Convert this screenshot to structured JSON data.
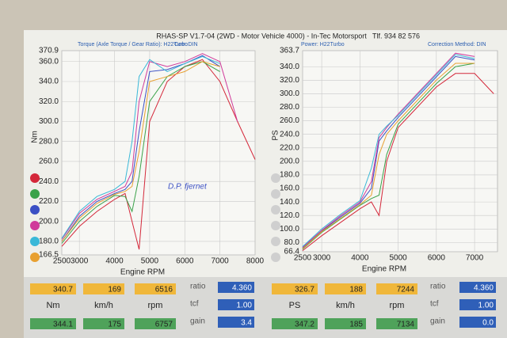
{
  "header": {
    "title": "RHAS-SP V1.7-04   (2WD - Motor Vehicle 4000) - In-Tec Motorsport",
    "phone": "Tlf.  934 82 576"
  },
  "chart_data": [
    {
      "type": "line",
      "subtitle": "Torque (Axle Torque / Gear Ratio): H22Turbo",
      "subtitle2": "Corr: DIN",
      "x_label": "Engine RPM",
      "y_label": "Nm",
      "annotation": "D.P. fjernet",
      "x": [
        2500,
        3000,
        3500,
        4000,
        4300,
        4500,
        4700,
        5000,
        5500,
        6000,
        6500,
        7000,
        7500,
        8000
      ],
      "series": [
        {
          "color": "#d4283a",
          "values": [
            175,
            195,
            210,
            222,
            228,
            200,
            172,
            300,
            340,
            355,
            362,
            340,
            300,
            262
          ]
        },
        {
          "color": "#3aa24a",
          "values": [
            178,
            200,
            215,
            226,
            225,
            210,
            245,
            320,
            345,
            355,
            360,
            350,
            null,
            null
          ]
        },
        {
          "color": "#3a4fc4",
          "values": [
            180,
            205,
            220,
            228,
            232,
            240,
            290,
            350,
            352,
            358,
            366,
            355,
            null,
            null
          ]
        },
        {
          "color": "#d03a9a",
          "values": [
            182,
            208,
            222,
            230,
            235,
            250,
            320,
            360,
            355,
            360,
            368,
            360,
            300,
            null
          ]
        },
        {
          "color": "#3ab8d8",
          "values": [
            183,
            210,
            225,
            232,
            240,
            280,
            345,
            362,
            350,
            358,
            365,
            358,
            null,
            null
          ]
        },
        {
          "color": "#e8a030",
          "values": [
            180,
            203,
            218,
            227,
            230,
            235,
            270,
            340,
            345,
            350,
            360,
            355,
            null,
            null
          ]
        }
      ],
      "xlim": [
        2500,
        8000
      ],
      "xticks": [
        2500,
        3000,
        4000,
        5000,
        6000,
        7000,
        8000
      ],
      "ylim": [
        166.5,
        370.9
      ],
      "yticks": [
        166.5,
        {
          "value": 180,
          "label": "180.0"
        },
        {
          "value": 200,
          "label": "200.0"
        },
        {
          "value": 220,
          "label": "220.0"
        },
        {
          "value": 240,
          "label": "240.0"
        },
        {
          "value": 260,
          "label": "260.0"
        },
        {
          "value": 280,
          "label": "280.0"
        },
        {
          "value": 300,
          "label": "300.0"
        },
        {
          "value": 320,
          "label": "320.0"
        },
        {
          "value": 340,
          "label": "340.0"
        },
        {
          "value": 360,
          "label": "360.0"
        },
        370.9
      ],
      "grid": true
    },
    {
      "type": "line",
      "subtitle": "Power: H22Turbo",
      "subtitle2": "Correction Method: DIN",
      "x_label": "Engine RPM",
      "y_label": "PS",
      "x": [
        2500,
        3000,
        3500,
        4000,
        4300,
        4500,
        4700,
        5000,
        5500,
        6000,
        6500,
        7000,
        7500
      ],
      "series": [
        {
          "color": "#d4283a",
          "values": [
            68,
            90,
            110,
            130,
            140,
            120,
            200,
            250,
            280,
            310,
            330,
            330,
            300
          ]
        },
        {
          "color": "#3aa24a",
          "values": [
            70,
            95,
            115,
            135,
            145,
            150,
            210,
            255,
            285,
            315,
            340,
            345,
            null
          ]
        },
        {
          "color": "#3a4fc4",
          "values": [
            72,
            97,
            118,
            138,
            160,
            230,
            245,
            265,
            295,
            325,
            355,
            350,
            null
          ]
        },
        {
          "color": "#d03a9a",
          "values": [
            73,
            98,
            120,
            140,
            170,
            235,
            250,
            270,
            300,
            330,
            360,
            355,
            null
          ]
        },
        {
          "color": "#3ab8d8",
          "values": [
            74,
            100,
            122,
            142,
            190,
            240,
            252,
            268,
            298,
            328,
            358,
            352,
            null
          ]
        },
        {
          "color": "#e8a030",
          "values": [
            71,
            96,
            116,
            136,
            150,
            210,
            240,
            260,
            290,
            320,
            345,
            345,
            null
          ]
        }
      ],
      "xlim": [
        2500,
        7600
      ],
      "xticks": [
        2500,
        3000,
        4000,
        5000,
        6000,
        7000
      ],
      "ylim": [
        66.4,
        363.7
      ],
      "yticks": [
        66.4,
        {
          "value": 80,
          "label": "80.0"
        },
        {
          "value": 100,
          "label": "100.0"
        },
        {
          "value": 120,
          "label": "120.0"
        },
        {
          "value": 140,
          "label": "140.0"
        },
        {
          "value": 160,
          "label": "160.0"
        },
        {
          "value": 180,
          "label": "180.0"
        },
        {
          "value": 200,
          "label": "200.0"
        },
        {
          "value": 220,
          "label": "220.0"
        },
        {
          "value": 240,
          "label": "240.0"
        },
        {
          "value": 260,
          "label": "260.0"
        },
        {
          "value": 280,
          "label": "280.0"
        },
        {
          "value": 300,
          "label": "300.0"
        },
        {
          "value": 320,
          "label": "320.0"
        },
        {
          "value": 340,
          "label": "340.0"
        },
        363.7
      ],
      "grid": true
    }
  ],
  "readouts": [
    {
      "top": [
        "340.7",
        "169",
        "6516"
      ],
      "units": [
        "Nm",
        "km/h",
        "rpm"
      ],
      "bottom": [
        "344.1",
        "175",
        "6757"
      ],
      "keys": [
        "ratio",
        "tcf",
        "gain"
      ],
      "settings": [
        "4.360",
        "1.00",
        "3.4"
      ]
    },
    {
      "top": [
        "326.7",
        "188",
        "7244"
      ],
      "units": [
        "PS",
        "km/h",
        "rpm"
      ],
      "bottom": [
        "347.2",
        "185",
        "7134"
      ],
      "keys": [
        "ratio",
        "tcf",
        "gain"
      ],
      "settings": [
        "4.360",
        "1.00",
        "0.0"
      ]
    }
  ]
}
